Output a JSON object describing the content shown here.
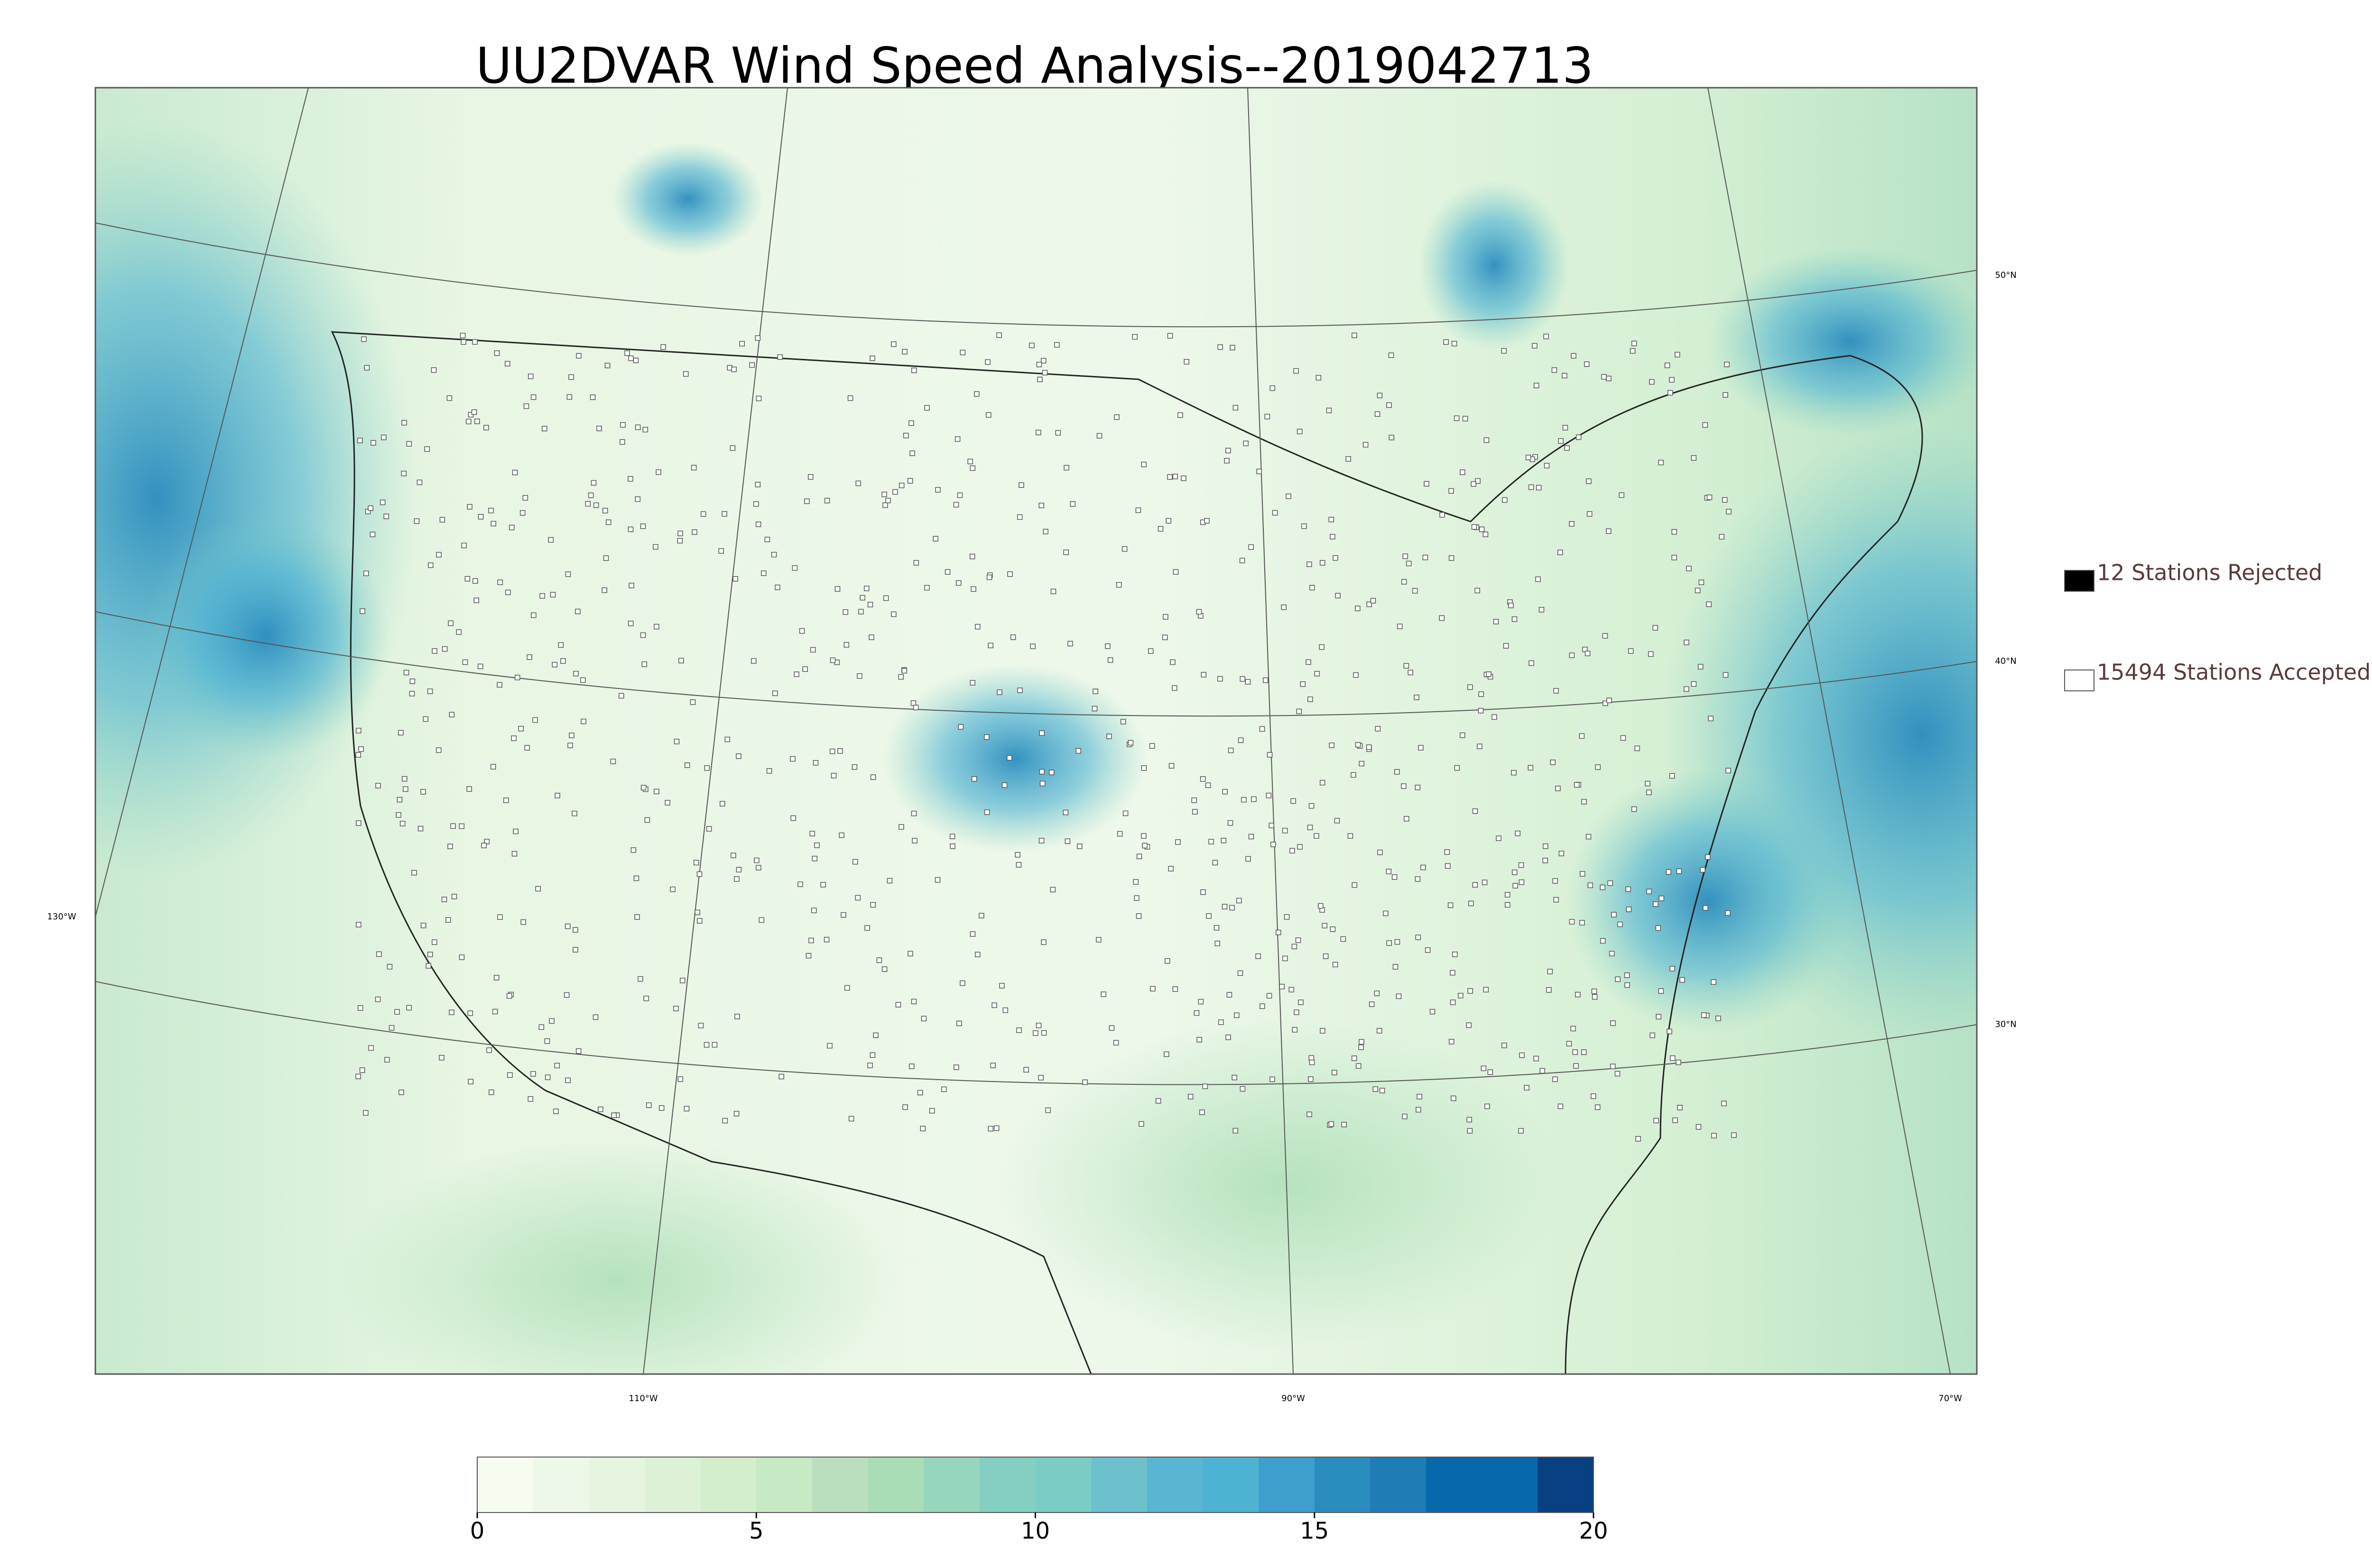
{
  "title": "UU2DVAR Wind Speed Analysis--2019042713",
  "legend": [
    {
      "label": "12 Stations Rejected",
      "color": "#000000"
    },
    {
      "label": "15494 Stations Accepted",
      "color": "#ffffff"
    }
  ],
  "colorbar": {
    "lim": [
      0,
      20
    ],
    "ticks": [
      0,
      5,
      10,
      15,
      20
    ],
    "colors": [
      "#f7fcf0",
      "#eef8e9",
      "#e5f5e0",
      "#dcf1d6",
      "#d3eecd",
      "#c7e9c4",
      "#badfbf",
      "#a8ddb5",
      "#96d6bc",
      "#84cfc2",
      "#7bccc4",
      "#6cc1cd",
      "#5ab5d3",
      "#4eb3d3",
      "#3e9fcc",
      "#2b8cbe",
      "#1f7cb5",
      "#0868ac",
      "#0868ac",
      "#084081"
    ]
  },
  "longitude_labels": [
    "130°W",
    "110°W",
    "90°W",
    "70°W"
  ],
  "latitude_labels": [
    "50°N",
    "40°N",
    "30°N"
  ]
}
